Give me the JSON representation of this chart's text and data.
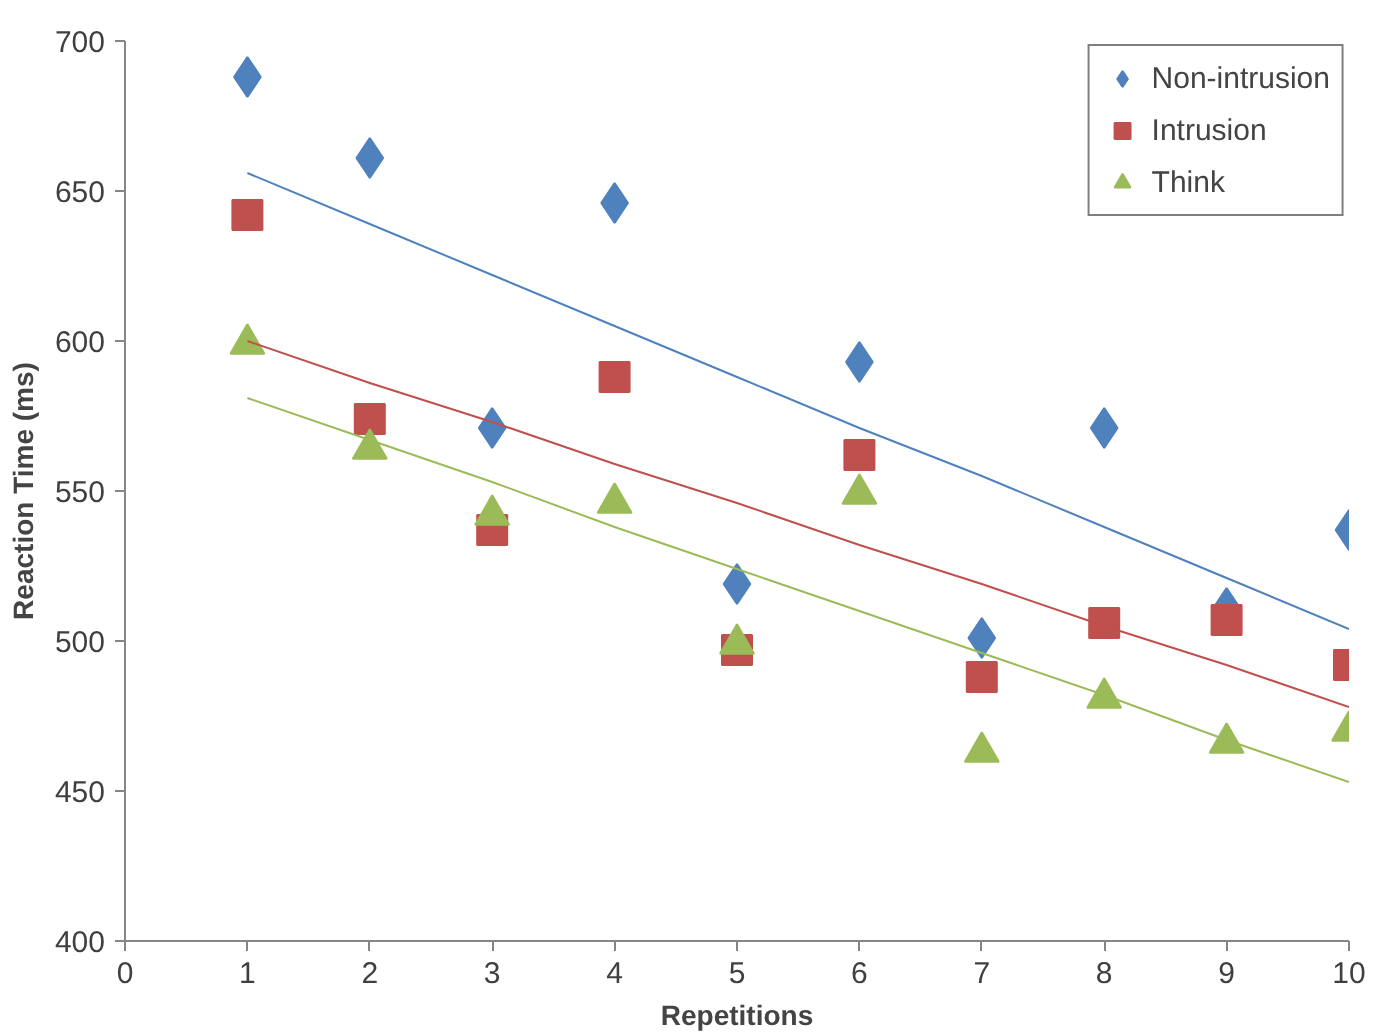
{
  "chart_data": {
    "type": "scatter",
    "xlabel": "Repetitions",
    "ylabel": "Reaction Time (ms)",
    "x": [
      1,
      2,
      3,
      4,
      5,
      6,
      7,
      8,
      9,
      10
    ],
    "xlim": [
      0,
      10
    ],
    "xticks": [
      0,
      1,
      2,
      3,
      4,
      5,
      6,
      7,
      8,
      9,
      10
    ],
    "ylim": [
      400,
      700
    ],
    "yticks": [
      400,
      450,
      500,
      550,
      600,
      650,
      700
    ],
    "grid": false,
    "legend": "top right",
    "series": [
      {
        "name": "Non-intrusion",
        "color": "#4f81bd",
        "marker": "diamond",
        "values": [
          688,
          661,
          571,
          646,
          519,
          593,
          501,
          571,
          511,
          537
        ]
      },
      {
        "name": "Intrusion",
        "color": "#c0504d",
        "marker": "square",
        "values": [
          642,
          574,
          537,
          588,
          497,
          562,
          488,
          506,
          507,
          492
        ]
      },
      {
        "name": "Think",
        "color": "#9bbb59",
        "marker": "triangle",
        "values": [
          599,
          564,
          542,
          546,
          499,
          549,
          463,
          481,
          466,
          470
        ]
      },
      {
        "type": "line",
        "color": "#4f81bd",
        "values": [
          656,
          639,
          622,
          605,
          588,
          571,
          555,
          538,
          521,
          504
        ]
      },
      {
        "type": "line",
        "color": "#c0504d",
        "values": [
          600,
          586,
          573,
          559,
          546,
          532,
          519,
          505,
          492,
          478
        ]
      },
      {
        "type": "line",
        "color": "#9bbb59",
        "values": [
          581,
          567,
          553,
          538,
          524,
          510,
          496,
          482,
          467,
          453
        ]
      }
    ]
  }
}
